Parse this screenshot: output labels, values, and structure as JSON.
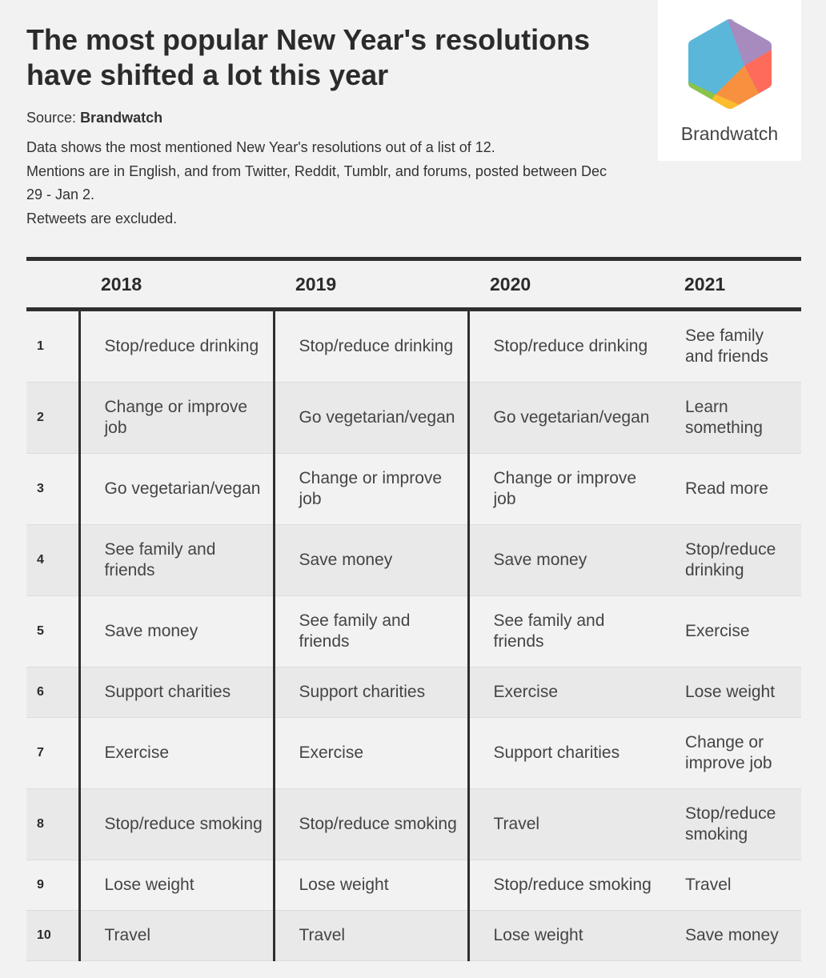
{
  "title": "The most popular New Year's resolutions have shifted a lot this year",
  "source_label": "Source:",
  "source_name": "Brandwatch",
  "description": [
    "Data shows the most mentioned New Year's resolutions out of a list of 12.",
    "Mentions are in English, and from Twitter, Reddit, Tumblr, and forums, posted between Dec 29 - Jan 2.",
    "Retweets are excluded."
  ],
  "logo": {
    "text": "Brandwatch",
    "colors": [
      "#5bb7d9",
      "#a78bbf",
      "#ff6b5b",
      "#f7913f",
      "#fbbd2e",
      "#8bc34a"
    ]
  },
  "table": {
    "headers": [
      "",
      "2018",
      "2019",
      "2020",
      "2021"
    ],
    "rows": [
      [
        "1",
        "Stop/reduce drinking",
        "Stop/reduce drinking",
        "Stop/reduce drinking",
        "See family and friends"
      ],
      [
        "2",
        "Change or improve job",
        "Go vegetarian/vegan",
        "Go vegetarian/vegan",
        "Learn something"
      ],
      [
        "3",
        "Go vegetarian/vegan",
        "Change or improve job",
        "Change or improve job",
        "Read more"
      ],
      [
        "4",
        "See family and friends",
        "Save money",
        "Save money",
        "Stop/reduce drinking"
      ],
      [
        "5",
        "Save money",
        "See family and friends",
        "See family and friends",
        "Exercise"
      ],
      [
        "6",
        "Support charities",
        "Support charities",
        "Exercise",
        "Lose weight"
      ],
      [
        "7",
        "Exercise",
        "Exercise",
        "Support charities",
        "Change or improve job"
      ],
      [
        "8",
        "Stop/reduce smoking",
        "Stop/reduce smoking",
        "Travel",
        "Stop/reduce smoking"
      ],
      [
        "9",
        "Lose weight",
        "Lose weight",
        "Stop/reduce smoking",
        "Travel"
      ],
      [
        "10",
        "Travel",
        "Travel",
        "Lose weight",
        "Save money"
      ]
    ]
  }
}
